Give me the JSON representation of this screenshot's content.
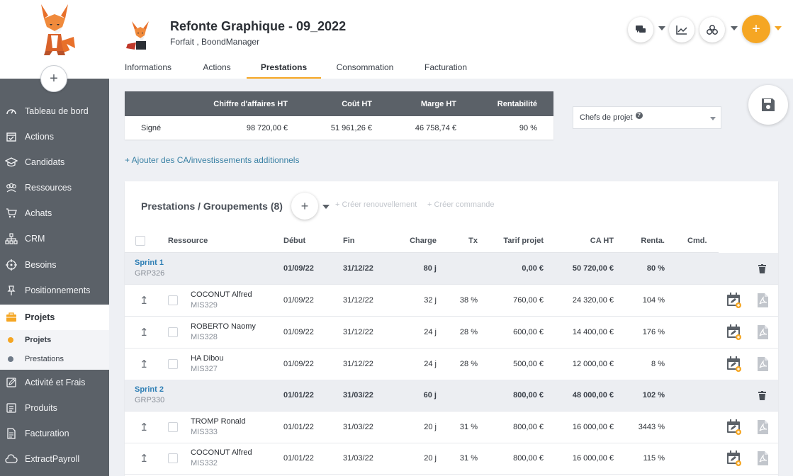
{
  "sidebar": {
    "items": [
      {
        "label": "Tableau de bord",
        "icon": "dashboard-icon"
      },
      {
        "label": "Actions",
        "icon": "calendar-icon"
      },
      {
        "label": "Candidats",
        "icon": "graduation-cap-icon"
      },
      {
        "label": "Ressources",
        "icon": "users-icon"
      },
      {
        "label": "Achats",
        "icon": "cart-icon"
      },
      {
        "label": "CRM",
        "icon": "org-chart-icon"
      },
      {
        "label": "Besoins",
        "icon": "target-icon"
      },
      {
        "label": "Positionnements",
        "icon": "pin-icon"
      },
      {
        "label": "Projets",
        "icon": "briefcase-icon"
      },
      {
        "label": "Activité et Frais",
        "icon": "pencil-square-icon"
      },
      {
        "label": "Produits",
        "icon": "list-icon"
      },
      {
        "label": "Facturation",
        "icon": "invoice-icon"
      },
      {
        "label": "ExtractPayroll",
        "icon": "cloud-icon"
      }
    ],
    "sub_items": [
      {
        "label": "Projets"
      },
      {
        "label": "Prestations"
      }
    ]
  },
  "header": {
    "title": "Refonte Graphique - 09_2022",
    "subtitle_type": "Forfait ,",
    "subtitle_company": "BoondManager",
    "add_label": "+"
  },
  "tabs": [
    {
      "label": "Informations"
    },
    {
      "label": "Actions"
    },
    {
      "label": "Prestations"
    },
    {
      "label": "Consommation"
    },
    {
      "label": "Facturation"
    }
  ],
  "summary": {
    "headers": [
      "Chiffre d'affaires HT",
      "Coût HT",
      "Marge HT",
      "Rentabilité"
    ],
    "row_label": "Signé",
    "values": [
      "98 720,00 €",
      "51 961,26 €",
      "46 758,74 €",
      "90 %"
    ]
  },
  "select": {
    "label": "Chefs de projet",
    "help": "?"
  },
  "add_ca_link": "+ Ajouter des CA/investissements additionnels",
  "panel": {
    "title": "Prestations / Groupements (8)",
    "add_label": "+",
    "renew_link": "+ Créer renouvellement",
    "order_link": "+ Créer commande",
    "columns": {
      "ressource": "Ressource",
      "debut": "Début",
      "fin": "Fin",
      "charge": "Charge",
      "tx": "Tx",
      "tarif": "Tarif projet",
      "ca": "CA HT",
      "renta": "Renta.",
      "cmd": "Cmd."
    },
    "sort_glyph": "↥",
    "rows": [
      {
        "type": "group",
        "name": "Sprint 1",
        "code": "GRP326",
        "debut": "01/09/22",
        "fin": "31/12/22",
        "charge": "80 j",
        "tx": "",
        "tarif": "0,00 €",
        "ca": "50 720,00 €",
        "renta": "80 %"
      },
      {
        "type": "item",
        "name": "COCONUT Alfred",
        "code": "MIS329",
        "debut": "01/09/22",
        "fin": "31/12/22",
        "charge": "32 j",
        "tx": "38 %",
        "tarif": "760,00 €",
        "ca": "24 320,00 €",
        "renta": "104 %"
      },
      {
        "type": "item",
        "name": "ROBERTO Naomy",
        "code": "MIS328",
        "debut": "01/09/22",
        "fin": "31/12/22",
        "charge": "24 j",
        "tx": "28 %",
        "tarif": "600,00 €",
        "ca": "14 400,00 €",
        "renta": "176 %"
      },
      {
        "type": "item",
        "name": "HA Dibou",
        "code": "MIS327",
        "debut": "01/09/22",
        "fin": "31/12/22",
        "charge": "24 j",
        "tx": "28 %",
        "tarif": "500,00 €",
        "ca": "12 000,00 €",
        "renta": "8 %"
      },
      {
        "type": "group",
        "name": "Sprint 2",
        "code": "GRP330",
        "debut": "01/01/22",
        "fin": "31/03/22",
        "charge": "60 j",
        "tx": "",
        "tarif": "800,00 €",
        "ca": "48 000,00 €",
        "renta": "102 %"
      },
      {
        "type": "item",
        "name": "TROMP Ronald",
        "code": "MIS333",
        "debut": "01/01/22",
        "fin": "31/03/22",
        "charge": "20 j",
        "tx": "31 %",
        "tarif": "800,00 €",
        "ca": "16 000,00 €",
        "renta": "3443 %"
      },
      {
        "type": "item",
        "name": "COCONUT Alfred",
        "code": "MIS332",
        "debut": "01/01/22",
        "fin": "31/03/22",
        "charge": "20 j",
        "tx": "31 %",
        "tarif": "800,00 €",
        "ca": "16 000,00 €",
        "renta": "115 %"
      }
    ]
  },
  "colors": {
    "accent": "#f5a623",
    "sidebar": "#5b6168",
    "link": "#3b82a5",
    "group_name": "#2f7fb5"
  }
}
